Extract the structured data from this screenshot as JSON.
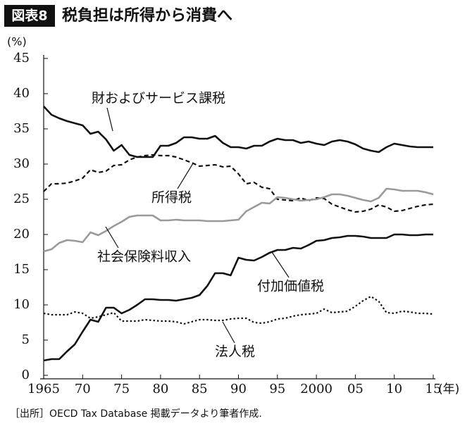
{
  "chart_data": {
    "type": "line",
    "figure_label": "図表8",
    "title": "税負担は所得から消費へ",
    "ylabel": "(%)",
    "xlabel": "(年)",
    "source": "［出所］OECD Tax Database 掲載データより筆者作成.",
    "x": [
      1965,
      1966,
      1967,
      1968,
      1969,
      1970,
      1971,
      1972,
      1973,
      1974,
      1975,
      1976,
      1977,
      1978,
      1979,
      1980,
      1981,
      1982,
      1983,
      1984,
      1985,
      1986,
      1987,
      1988,
      1989,
      1990,
      1991,
      1992,
      1993,
      1994,
      1995,
      1996,
      1997,
      1998,
      1999,
      2000,
      2001,
      2002,
      2003,
      2004,
      2005,
      2006,
      2007,
      2008,
      2009,
      2010,
      2011,
      2012,
      2013,
      2014,
      2015
    ],
    "xlim": [
      1965,
      2015
    ],
    "xticks": [
      1965,
      {
        "value": 1970,
        "label": "70"
      },
      {
        "value": 1975,
        "label": "75"
      },
      {
        "value": 1980,
        "label": "80"
      },
      {
        "value": 1985,
        "label": "85"
      },
      {
        "value": 1990,
        "label": "90"
      },
      {
        "value": 1995,
        "label": "95"
      },
      2000,
      {
        "value": 2005,
        "label": "05"
      },
      {
        "value": 2010,
        "label": "10"
      },
      {
        "value": 2015,
        "label": "15"
      }
    ],
    "ylim": [
      0,
      45
    ],
    "yticks": [
      0,
      5,
      10,
      15,
      20,
      25,
      30,
      35,
      40,
      45
    ],
    "series": [
      {
        "name": "財およびサービス課税",
        "color": "#111111",
        "style": "solid",
        "values": [
          38.2,
          37.0,
          36.5,
          36.1,
          35.8,
          35.5,
          34.3,
          34.6,
          33.5,
          31.9,
          32.7,
          31.3,
          31.0,
          31.0,
          31.0,
          32.6,
          32.6,
          33.0,
          33.8,
          33.8,
          33.6,
          33.6,
          34.0,
          33.0,
          32.4,
          32.4,
          32.2,
          32.6,
          32.6,
          33.2,
          33.6,
          33.4,
          33.4,
          33.0,
          33.2,
          32.9,
          32.7,
          33.2,
          33.4,
          33.2,
          32.8,
          32.2,
          31.9,
          31.7,
          32.4,
          32.9,
          32.7,
          32.5,
          32.4,
          32.4,
          32.4
        ]
      },
      {
        "name": "所得税",
        "color": "#111111",
        "style": "dashed",
        "values": [
          26.1,
          27.2,
          27.2,
          27.3,
          27.6,
          28.0,
          29.2,
          28.8,
          29.0,
          29.8,
          29.9,
          30.6,
          31.0,
          31.2,
          31.3,
          31.2,
          31.2,
          31.0,
          30.6,
          30.2,
          29.7,
          29.8,
          29.9,
          29.6,
          29.7,
          28.6,
          27.2,
          27.4,
          26.7,
          26.5,
          25.0,
          24.9,
          24.8,
          25.2,
          24.8,
          25.2,
          25.1,
          24.3,
          23.9,
          23.5,
          23.2,
          23.3,
          23.6,
          24.2,
          23.9,
          23.3,
          23.4,
          23.7,
          24.0,
          24.2,
          24.3
        ]
      },
      {
        "name": "社会保険料収入",
        "color": "#9a9a9a",
        "style": "solid",
        "values": [
          17.6,
          17.9,
          18.8,
          19.2,
          19.1,
          18.9,
          20.3,
          19.9,
          20.5,
          21.2,
          21.8,
          22.5,
          22.7,
          22.7,
          22.7,
          22.0,
          22.0,
          22.1,
          22.0,
          22.0,
          22.0,
          21.9,
          21.9,
          21.9,
          22.0,
          22.1,
          23.3,
          23.9,
          24.5,
          24.4,
          25.3,
          25.2,
          25.0,
          24.8,
          24.9,
          25.0,
          25.3,
          25.7,
          25.7,
          25.5,
          25.2,
          24.9,
          24.7,
          25.2,
          26.5,
          26.4,
          26.2,
          26.2,
          26.2,
          26.0,
          25.7
        ]
      },
      {
        "name": "付加価値税",
        "color": "#111111",
        "style": "solid",
        "values": [
          2.1,
          2.3,
          2.3,
          3.4,
          4.4,
          6.2,
          7.9,
          7.6,
          9.6,
          9.6,
          8.8,
          9.3,
          10.0,
          10.8,
          10.8,
          10.7,
          10.7,
          10.6,
          10.8,
          11.0,
          11.4,
          12.7,
          14.5,
          14.5,
          14.2,
          16.7,
          16.4,
          16.3,
          16.8,
          17.4,
          17.8,
          17.8,
          18.1,
          18.0,
          18.5,
          19.1,
          19.2,
          19.5,
          19.6,
          19.8,
          19.8,
          19.7,
          19.5,
          19.5,
          19.5,
          20.0,
          20.0,
          19.9,
          19.9,
          20.0,
          20.0
        ]
      },
      {
        "name": "法人税",
        "color": "#111111",
        "style": "dotted",
        "values": [
          8.8,
          8.6,
          8.6,
          8.6,
          9.0,
          8.8,
          8.1,
          8.3,
          8.6,
          8.9,
          7.7,
          7.7,
          7.7,
          7.9,
          7.8,
          7.7,
          7.7,
          7.6,
          7.3,
          7.6,
          7.9,
          7.9,
          7.8,
          7.8,
          8.0,
          8.1,
          8.1,
          7.5,
          7.4,
          7.6,
          8.0,
          8.1,
          8.4,
          8.6,
          8.7,
          8.8,
          9.4,
          8.9,
          9.0,
          9.1,
          9.8,
          10.6,
          11.2,
          10.5,
          8.9,
          8.8,
          9.1,
          9.0,
          8.8,
          8.8,
          8.7
        ]
      }
    ]
  }
}
